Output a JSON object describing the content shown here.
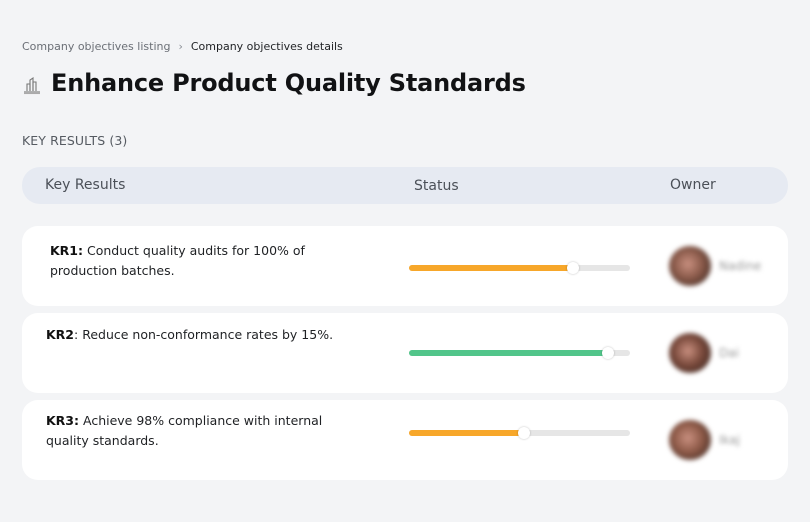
{
  "breadcrumb": {
    "items": [
      {
        "label": "Company objectives listing"
      },
      {
        "label": "Company objectives details"
      }
    ],
    "separator": "›"
  },
  "header": {
    "icon": "building-icon",
    "title": "Enhance Product Quality Standards"
  },
  "key_results_section": {
    "label": "KEY RESULTS (3)",
    "columns": {
      "key_results": "Key Results",
      "status": "Status",
      "owner": "Owner"
    },
    "rows": [
      {
        "code": "KR1:",
        "text": " Conduct quality audits for 100% of production batches.",
        "progress": 74,
        "progress_color": "#f7a72a",
        "owner_name": "Nadine",
        "avatar_color": "#8a5a4a"
      },
      {
        "code": "KR2",
        "text": ": Reduce non-conformance rates by 15%.",
        "progress": 90,
        "progress_color": "#52c58a",
        "owner_name": "Dai",
        "avatar_color": "#7a4a3c"
      },
      {
        "code": "KR3:",
        "text": " Achieve 98% compliance with internal quality standards.",
        "progress": 52,
        "progress_color": "#f7a72a",
        "owner_name": "Ikaj",
        "avatar_color": "#8e5a48"
      }
    ]
  }
}
